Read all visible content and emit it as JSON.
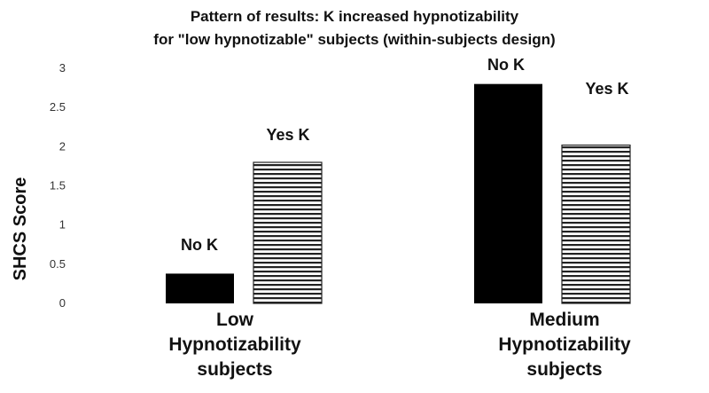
{
  "chart_data": {
    "type": "bar",
    "title_lines": [
      "Pattern of results: K increased hypnotizability",
      "for \"low hypnotizable\" subjects (within-subjects design)"
    ],
    "ylabel": "SHCS  Score",
    "xlabel": "",
    "ylim": [
      0,
      3
    ],
    "yticks": [
      "0",
      "0.5",
      "1",
      "1.5",
      "2",
      "2.5",
      "3"
    ],
    "grid": false,
    "categories": [
      [
        "Low",
        "Hypnotizability",
        "subjects"
      ],
      [
        "Medium",
        "Hypnotizability",
        "subjects"
      ]
    ],
    "series": [
      {
        "name": "No K",
        "values": [
          0.38,
          2.8
        ],
        "fill": "#000000",
        "pattern": "solid"
      },
      {
        "name": "Yes K",
        "values": [
          1.8,
          2.02
        ],
        "fill": "#ffffff",
        "pattern": "horizontal-stripes"
      }
    ],
    "bar_labels": [
      [
        "No K",
        "No K"
      ],
      [
        "Yes K",
        "Yes K"
      ]
    ]
  }
}
